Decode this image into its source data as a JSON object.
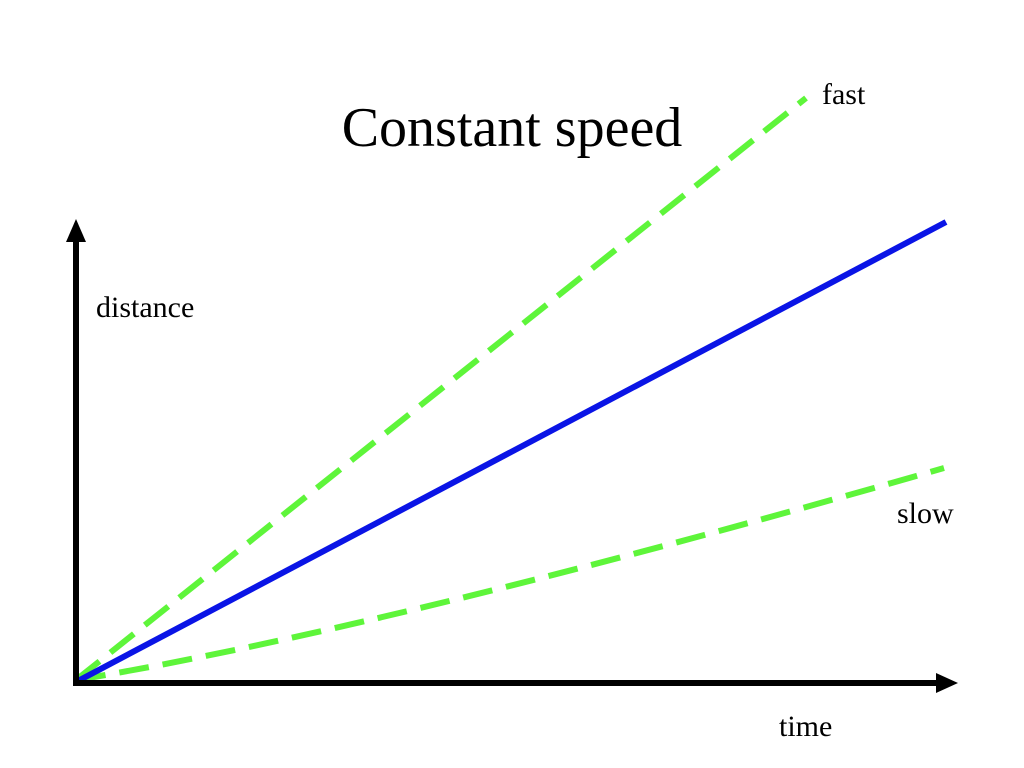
{
  "title": "Constant speed",
  "colors": {
    "axis": "#000000",
    "main_line": "#0a14e6",
    "comparison_lines": "#5ef53a"
  },
  "axes": {
    "y_label": "distance",
    "x_label": "time"
  },
  "lines": {
    "fast": {
      "label": "fast",
      "style": "dashed"
    },
    "main": {
      "style": "solid"
    },
    "slow": {
      "label": "slow",
      "style": "dashed"
    }
  }
}
